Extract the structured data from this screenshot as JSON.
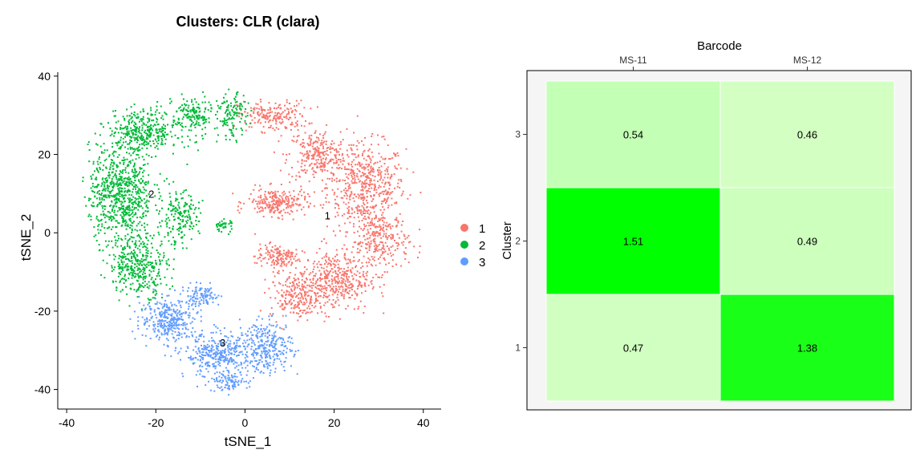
{
  "chart_data": [
    {
      "type": "scatter",
      "title": "Clusters: CLR (clara)",
      "xlabel": "tSNE_1",
      "ylabel": "tSNE_2",
      "xlim": [
        -42,
        44
      ],
      "ylim": [
        -45,
        41
      ],
      "xticks": [
        "-40",
        "-20",
        "0",
        "20",
        "40"
      ],
      "yticks": [
        "40",
        "20",
        "0",
        "-20",
        "-40"
      ],
      "legend": {
        "placement": "right",
        "entries": [
          {
            "name": "1",
            "color": "#F8766D"
          },
          {
            "name": "2",
            "color": "#00BA38"
          },
          {
            "name": "3",
            "color": "#619CFF"
          }
        ]
      },
      "cluster_labels": [
        {
          "label": "1",
          "x": 18.5,
          "y": 4.5
        },
        {
          "label": "2",
          "x": -21,
          "y": 10
        },
        {
          "label": "3",
          "x": -5,
          "y": -28
        }
      ]
    },
    {
      "type": "heatmap",
      "xlabel": "Barcode",
      "ylabel": "Cluster",
      "x": [
        "MS-11",
        "MS-12"
      ],
      "y": [
        "1",
        "2",
        "3"
      ],
      "values": [
        [
          0.47,
          1.38
        ],
        [
          1.51,
          0.49
        ],
        [
          0.54,
          0.46
        ]
      ],
      "labels": [
        [
          "0.47",
          "1.38"
        ],
        [
          "1.51",
          "0.49"
        ],
        [
          "0.54",
          "0.46"
        ]
      ],
      "colors": {
        "low": "#d3ffc3",
        "high": "#00ff00"
      }
    }
  ]
}
